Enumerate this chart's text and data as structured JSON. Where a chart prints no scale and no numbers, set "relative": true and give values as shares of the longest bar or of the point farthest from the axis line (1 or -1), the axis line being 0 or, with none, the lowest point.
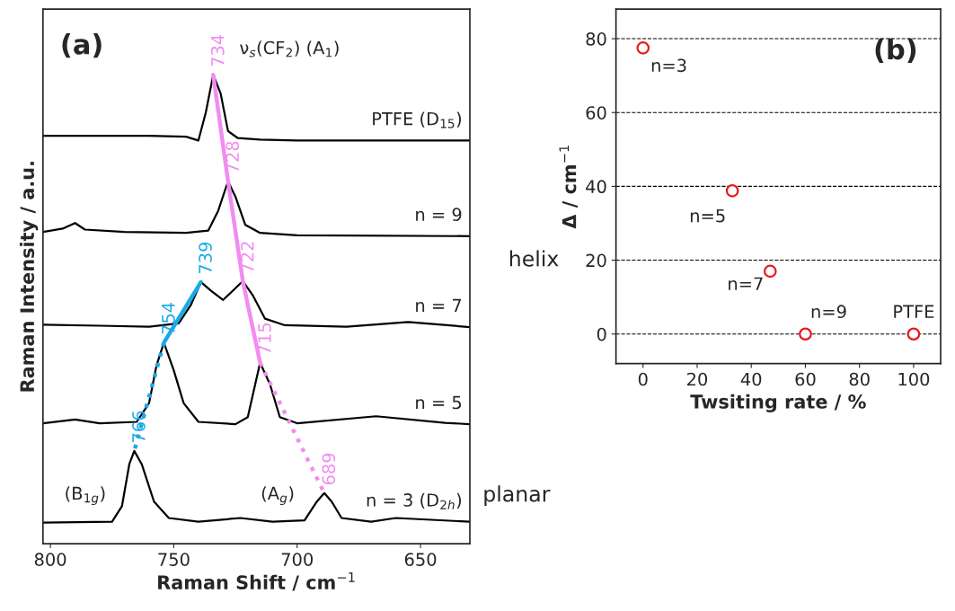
{
  "chart_data": [
    {
      "type": "line",
      "relative": true,
      "xlabel": "Raman Shift / cm$^{−1}$",
      "ylabel": "Raman Intensity / a.u.",
      "xlim": [
        803,
        630
      ],
      "xticks": [
        800,
        750,
        700,
        650
      ],
      "tick_labels": "x",
      "grid": false,
      "legend": false,
      "series": [
        {
          "name": "PTFE (D$_{15}$)",
          "color": "#000000",
          "x": [
            803,
            760,
            745,
            740,
            737,
            734,
            731,
            728,
            724,
            715,
            700,
            630
          ],
          "values": [
            0.87,
            0.87,
            0.868,
            0.86,
            0.92,
            1.0,
            0.96,
            0.88,
            0.865,
            0.862,
            0.86,
            0.86
          ]
        },
        {
          "name": "n = 9",
          "color": "#000000",
          "x": [
            803,
            795,
            790,
            786,
            770,
            745,
            736,
            732,
            728,
            725,
            721,
            715,
            700,
            630
          ],
          "values": [
            0.665,
            0.672,
            0.684,
            0.67,
            0.665,
            0.663,
            0.668,
            0.71,
            0.773,
            0.74,
            0.68,
            0.663,
            0.658,
            0.656
          ]
        },
        {
          "name": "n = 7",
          "color": "#000000",
          "x": [
            803,
            780,
            760,
            748,
            743,
            739,
            735,
            730,
            725,
            722,
            718,
            713,
            705,
            680,
            655,
            630
          ],
          "values": [
            0.467,
            0.465,
            0.463,
            0.47,
            0.51,
            0.558,
            0.54,
            0.52,
            0.545,
            0.56,
            0.53,
            0.48,
            0.466,
            0.463,
            0.473,
            0.462
          ]
        },
        {
          "name": "n = 5",
          "color": "#000000",
          "x": [
            803,
            790,
            780,
            765,
            760,
            757,
            754,
            750,
            746,
            740,
            725,
            720,
            717,
            715,
            711,
            707,
            700,
            668,
            640,
            630
          ],
          "values": [
            0.257,
            0.265,
            0.257,
            0.26,
            0.3,
            0.38,
            0.429,
            0.37,
            0.3,
            0.26,
            0.255,
            0.27,
            0.34,
            0.386,
            0.34,
            0.27,
            0.257,
            0.272,
            0.258,
            0.255
          ]
        },
        {
          "name": "n = 3 (D$_{2h}$)",
          "color": "#000000",
          "x": [
            803,
            775,
            771,
            768,
            766,
            763,
            758,
            752,
            740,
            723,
            710,
            697,
            692,
            689,
            686,
            682,
            670,
            660,
            630
          ],
          "values": [
            0.045,
            0.047,
            0.08,
            0.17,
            0.198,
            0.17,
            0.09,
            0.055,
            0.047,
            0.055,
            0.047,
            0.05,
            0.09,
            0.108,
            0.09,
            0.055,
            0.047,
            0.055,
            0.047
          ]
        },
        {
          "type": "line",
          "color": "#f28cf0",
          "line_style": "solid",
          "x": [
            734,
            728,
            722,
            715
          ],
          "values": [
            1.0,
            0.773,
            0.56,
            0.386
          ]
        },
        {
          "type": "line",
          "color": "#f28cf0",
          "line_style": "dotted",
          "x": [
            715,
            689
          ],
          "values": [
            0.386,
            0.108
          ]
        },
        {
          "type": "line",
          "color": "#1ba9e8",
          "line_style": "solid",
          "x": [
            739,
            754
          ],
          "values": [
            0.558,
            0.429
          ]
        },
        {
          "type": "line",
          "color": "#1ba9e8",
          "line_style": "dotted",
          "x": [
            754,
            766
          ],
          "values": [
            0.429,
            0.198
          ]
        }
      ],
      "annotations": [
        "(a)",
        "helix",
        "planar",
        {
          "text": "734",
          "x": 734,
          "y": 1.0
        },
        {
          "text": "728",
          "x": 728,
          "y": 0.773
        },
        {
          "text": "739",
          "x": 739,
          "y": 0.558
        },
        {
          "text": "722",
          "x": 722,
          "y": 0.56
        },
        {
          "text": "754",
          "x": 754,
          "y": 0.429
        },
        {
          "text": "715",
          "x": 715,
          "y": 0.386
        },
        {
          "text": "766",
          "x": 766,
          "y": 0.198
        },
        {
          "text": "689",
          "x": 689,
          "y": 0.108
        },
        "ν$_{s}$(CF$_{2}$) (A$_{1}$)",
        "(B$_{1g}$)",
        "(A$_{g}$)"
      ]
    },
    {
      "type": "scatter",
      "xlabel": "Twsiting rate / %",
      "ylabel": "Δ / cm$^{−1}$",
      "xlim": [
        -10,
        110
      ],
      "ylim": [
        -8,
        88
      ],
      "xticks": [
        0,
        20,
        40,
        60,
        80,
        100
      ],
      "yticks": [
        0,
        20,
        40,
        60,
        80
      ],
      "grid": "y",
      "legend": false,
      "marker": "circle",
      "x": [
        0,
        33,
        47,
        60,
        100
      ],
      "series": [
        {
          "color": "#e8181e",
          "values": [
            77.5,
            38.8,
            17,
            0,
            0
          ]
        }
      ],
      "annotations": [
        "(b)",
        {
          "text": "n=3",
          "x": 0,
          "y": 77.5
        },
        {
          "text": "n=5",
          "x": 33,
          "y": 38.8
        },
        {
          "text": "n=7",
          "x": 47,
          "y": 17
        },
        {
          "text": "n=9",
          "x": 60,
          "y": 0
        },
        {
          "text": "PTFE",
          "x": 100,
          "y": 0
        }
      ]
    }
  ]
}
